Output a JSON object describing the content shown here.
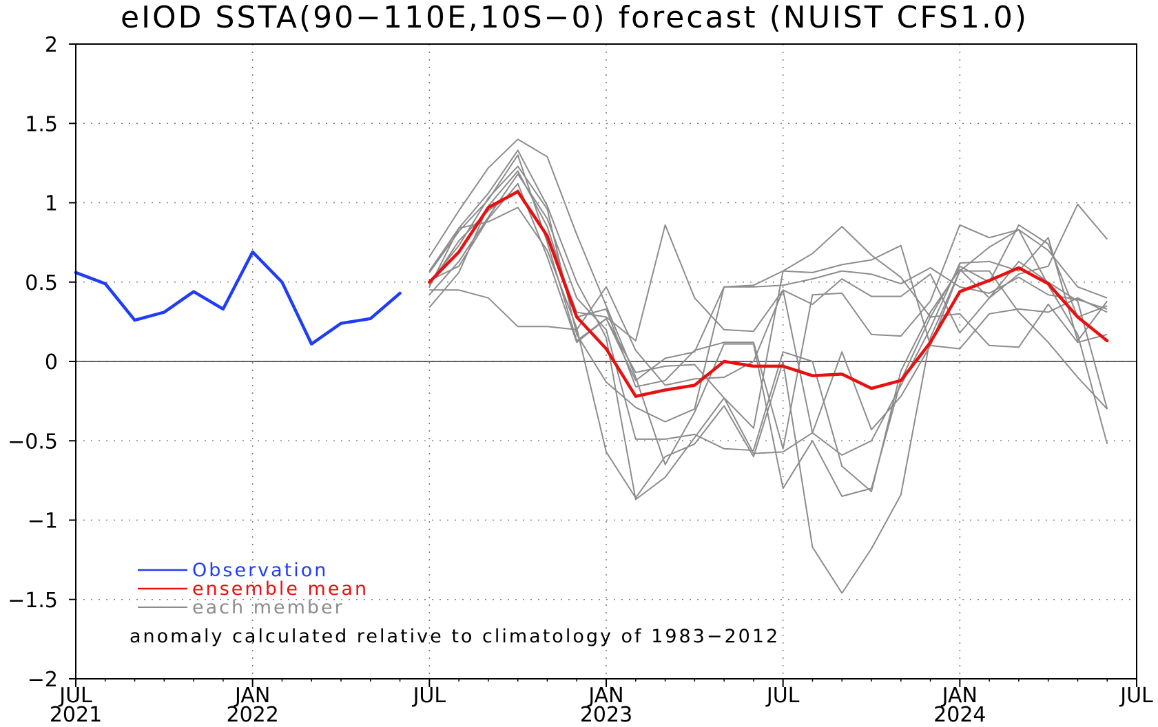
{
  "chart_data": {
    "type": "line",
    "title": "eIOD SSTA(90−110E,10S−0) forecast (NUIST CFS1.0)",
    "ylim": [
      -2,
      2
    ],
    "yticks": [
      "2",
      "1.5",
      "1",
      "0.5",
      "0",
      "−0.5",
      "−1",
      "−1.5",
      "−2"
    ],
    "ytick_values": [
      2,
      1.5,
      1,
      0.5,
      0,
      -0.5,
      -1,
      -1.5,
      -2
    ],
    "xlim": [
      "2021-07",
      "2024-07"
    ],
    "xticks": [
      {
        "date": "2021-07",
        "month": "JUL",
        "year": "2021"
      },
      {
        "date": "2022-01",
        "month": "JAN",
        "year": "2022"
      },
      {
        "date": "2022-07",
        "month": "JUL",
        "year": ""
      },
      {
        "date": "2023-01",
        "month": "JAN",
        "year": "2023"
      },
      {
        "date": "2023-07",
        "month": "JUL",
        "year": ""
      },
      {
        "date": "2024-01",
        "month": "JAN",
        "year": "2024"
      },
      {
        "date": "2024-07",
        "month": "JUL",
        "year": ""
      }
    ],
    "grid": true,
    "zero_line": true,
    "colors": {
      "observation": "#1f3df5",
      "ensemble_mean": "#e81010",
      "member": "#8c8c8c",
      "grid": "#7a7a7a",
      "axis": "#000000"
    },
    "legend": {
      "placement": "bottom-left",
      "entries": [
        {
          "label": "Observation",
          "color": "#1f3df5"
        },
        {
          "label": "ensemble mean",
          "color": "#e81010"
        },
        {
          "label": "each member",
          "color": "#8c8c8c"
        }
      ]
    },
    "annotation": "anomaly calculated relative to climatology of 1983−2012",
    "series": [
      {
        "name": "Observation",
        "x": [
          "2021-07",
          "2021-08",
          "2021-09",
          "2021-10",
          "2021-11",
          "2021-12",
          "2022-01",
          "2022-02",
          "2022-03",
          "2022-04",
          "2022-05",
          "2022-06"
        ],
        "values": [
          0.56,
          0.49,
          0.26,
          0.31,
          0.44,
          0.33,
          0.69,
          0.5,
          0.11,
          0.24,
          0.27,
          0.43
        ]
      },
      {
        "name": "ensemble mean",
        "x": [
          "2022-07",
          "2022-08",
          "2022-09",
          "2022-10",
          "2022-11",
          "2022-12",
          "2023-01",
          "2023-02",
          "2023-03",
          "2023-04",
          "2023-05",
          "2023-06",
          "2023-07",
          "2023-08",
          "2023-09",
          "2023-10",
          "2023-11",
          "2023-12",
          "2024-01",
          "2024-02",
          "2024-03",
          "2024-04",
          "2024-05",
          "2024-06"
        ],
        "values": [
          0.5,
          0.69,
          0.97,
          1.07,
          0.79,
          0.28,
          0.08,
          -0.22,
          -0.18,
          -0.15,
          0.0,
          -0.03,
          -0.03,
          -0.09,
          -0.08,
          -0.17,
          -0.12,
          0.12,
          0.44,
          0.51,
          0.59,
          0.49,
          0.28,
          0.13
        ]
      }
    ],
    "members": {
      "x": [
        "2022-07",
        "2022-08",
        "2022-09",
        "2022-10",
        "2022-11",
        "2022-12",
        "2023-01",
        "2023-02",
        "2023-03",
        "2023-04",
        "2023-05",
        "2023-06",
        "2023-07",
        "2023-08",
        "2023-09",
        "2023-10",
        "2023-11",
        "2023-12",
        "2024-01",
        "2024-02",
        "2024-03",
        "2024-04",
        "2024-05",
        "2024-06"
      ],
      "values": [
        [
          0.66,
          0.95,
          1.22,
          1.4,
          1.29,
          0.8,
          0.35,
          -0.1,
          -0.65,
          -0.32,
          0.11,
          0.11,
          -0.8,
          -0.5,
          -0.85,
          -0.8,
          -0.12,
          0.28,
          0.6,
          0.5,
          0.86,
          0.74,
          0.28,
          0.35
        ],
        [
          0.57,
          0.84,
          1.06,
          1.33,
          0.98,
          0.5,
          0.15,
          -0.87,
          -0.73,
          -0.48,
          -0.23,
          -0.58,
          -0.57,
          -0.45,
          -0.59,
          -0.5,
          -0.15,
          0.21,
          0.62,
          0.63,
          0.57,
          0.78,
          0.13,
          0.38
        ],
        [
          0.42,
          0.63,
          0.91,
          1.18,
          0.9,
          0.4,
          0.2,
          -0.49,
          -0.49,
          -0.46,
          -0.55,
          -0.56,
          0.06,
          0.0,
          -0.66,
          -0.82,
          -0.06,
          0.31,
          0.58,
          0.4,
          0.63,
          0.5,
          0.38,
          -0.3
        ],
        [
          0.34,
          0.56,
          0.98,
          1.2,
          0.85,
          0.28,
          0.33,
          -0.16,
          -0.12,
          0.07,
          0.12,
          0.12,
          -0.55,
          0.42,
          0.43,
          0.17,
          0.16,
          0.38,
          0.86,
          0.78,
          0.83,
          0.7,
          0.47,
          0.4
        ],
        [
          0.45,
          0.45,
          0.4,
          0.22,
          0.22,
          0.2,
          0.47,
          0.07,
          -0.15,
          -0.11,
          -0.1,
          0.0,
          0.45,
          -0.45,
          0.06,
          -0.43,
          -0.22,
          0.1,
          0.57,
          0.72,
          0.83,
          0.48,
          0.17,
          -0.52
        ],
        [
          0.47,
          0.84,
          0.88,
          0.97,
          0.7,
          0.21,
          -0.57,
          -0.86,
          -0.6,
          -0.52,
          -0.28,
          -0.6,
          0.0,
          -1.17,
          -1.46,
          -1.18,
          -0.84,
          0.15,
          0.57,
          0.57,
          0.31,
          0.12,
          -0.1,
          -0.3
        ],
        [
          0.56,
          0.82,
          1.02,
          1.3,
          0.75,
          0.13,
          0.27,
          -0.12,
          0.02,
          0.06,
          0.47,
          0.47,
          0.48,
          0.52,
          0.57,
          0.55,
          0.49,
          0.59,
          0.47,
          0.43,
          0.53,
          0.42,
          0.39,
          0.33
        ],
        [
          0.48,
          0.76,
          0.95,
          1.08,
          0.8,
          0.31,
          0.28,
          0.13,
          0.86,
          0.4,
          0.2,
          0.19,
          0.45,
          0.36,
          0.52,
          0.41,
          0.41,
          0.55,
          0.18,
          0.4,
          0.55,
          0.6,
          0.99,
          0.77
        ],
        [
          0.5,
          0.73,
          1.03,
          1.23,
          0.96,
          0.17,
          -0.13,
          -0.29,
          -0.38,
          -0.3,
          0.47,
          0.48,
          0.57,
          0.56,
          0.61,
          0.64,
          0.73,
          0.1,
          0.08,
          0.3,
          0.33,
          0.31,
          0.4,
          0.31
        ],
        [
          0.51,
          0.6,
          0.9,
          1.12,
          0.66,
          0.12,
          0.27,
          -0.07,
          -0.03,
          -0.02,
          -0.23,
          -0.42,
          0.57,
          0.68,
          0.85,
          0.67,
          0.53,
          0.28,
          0.3,
          0.1,
          0.09,
          0.36,
          0.12,
          0.17
        ]
      ]
    }
  }
}
